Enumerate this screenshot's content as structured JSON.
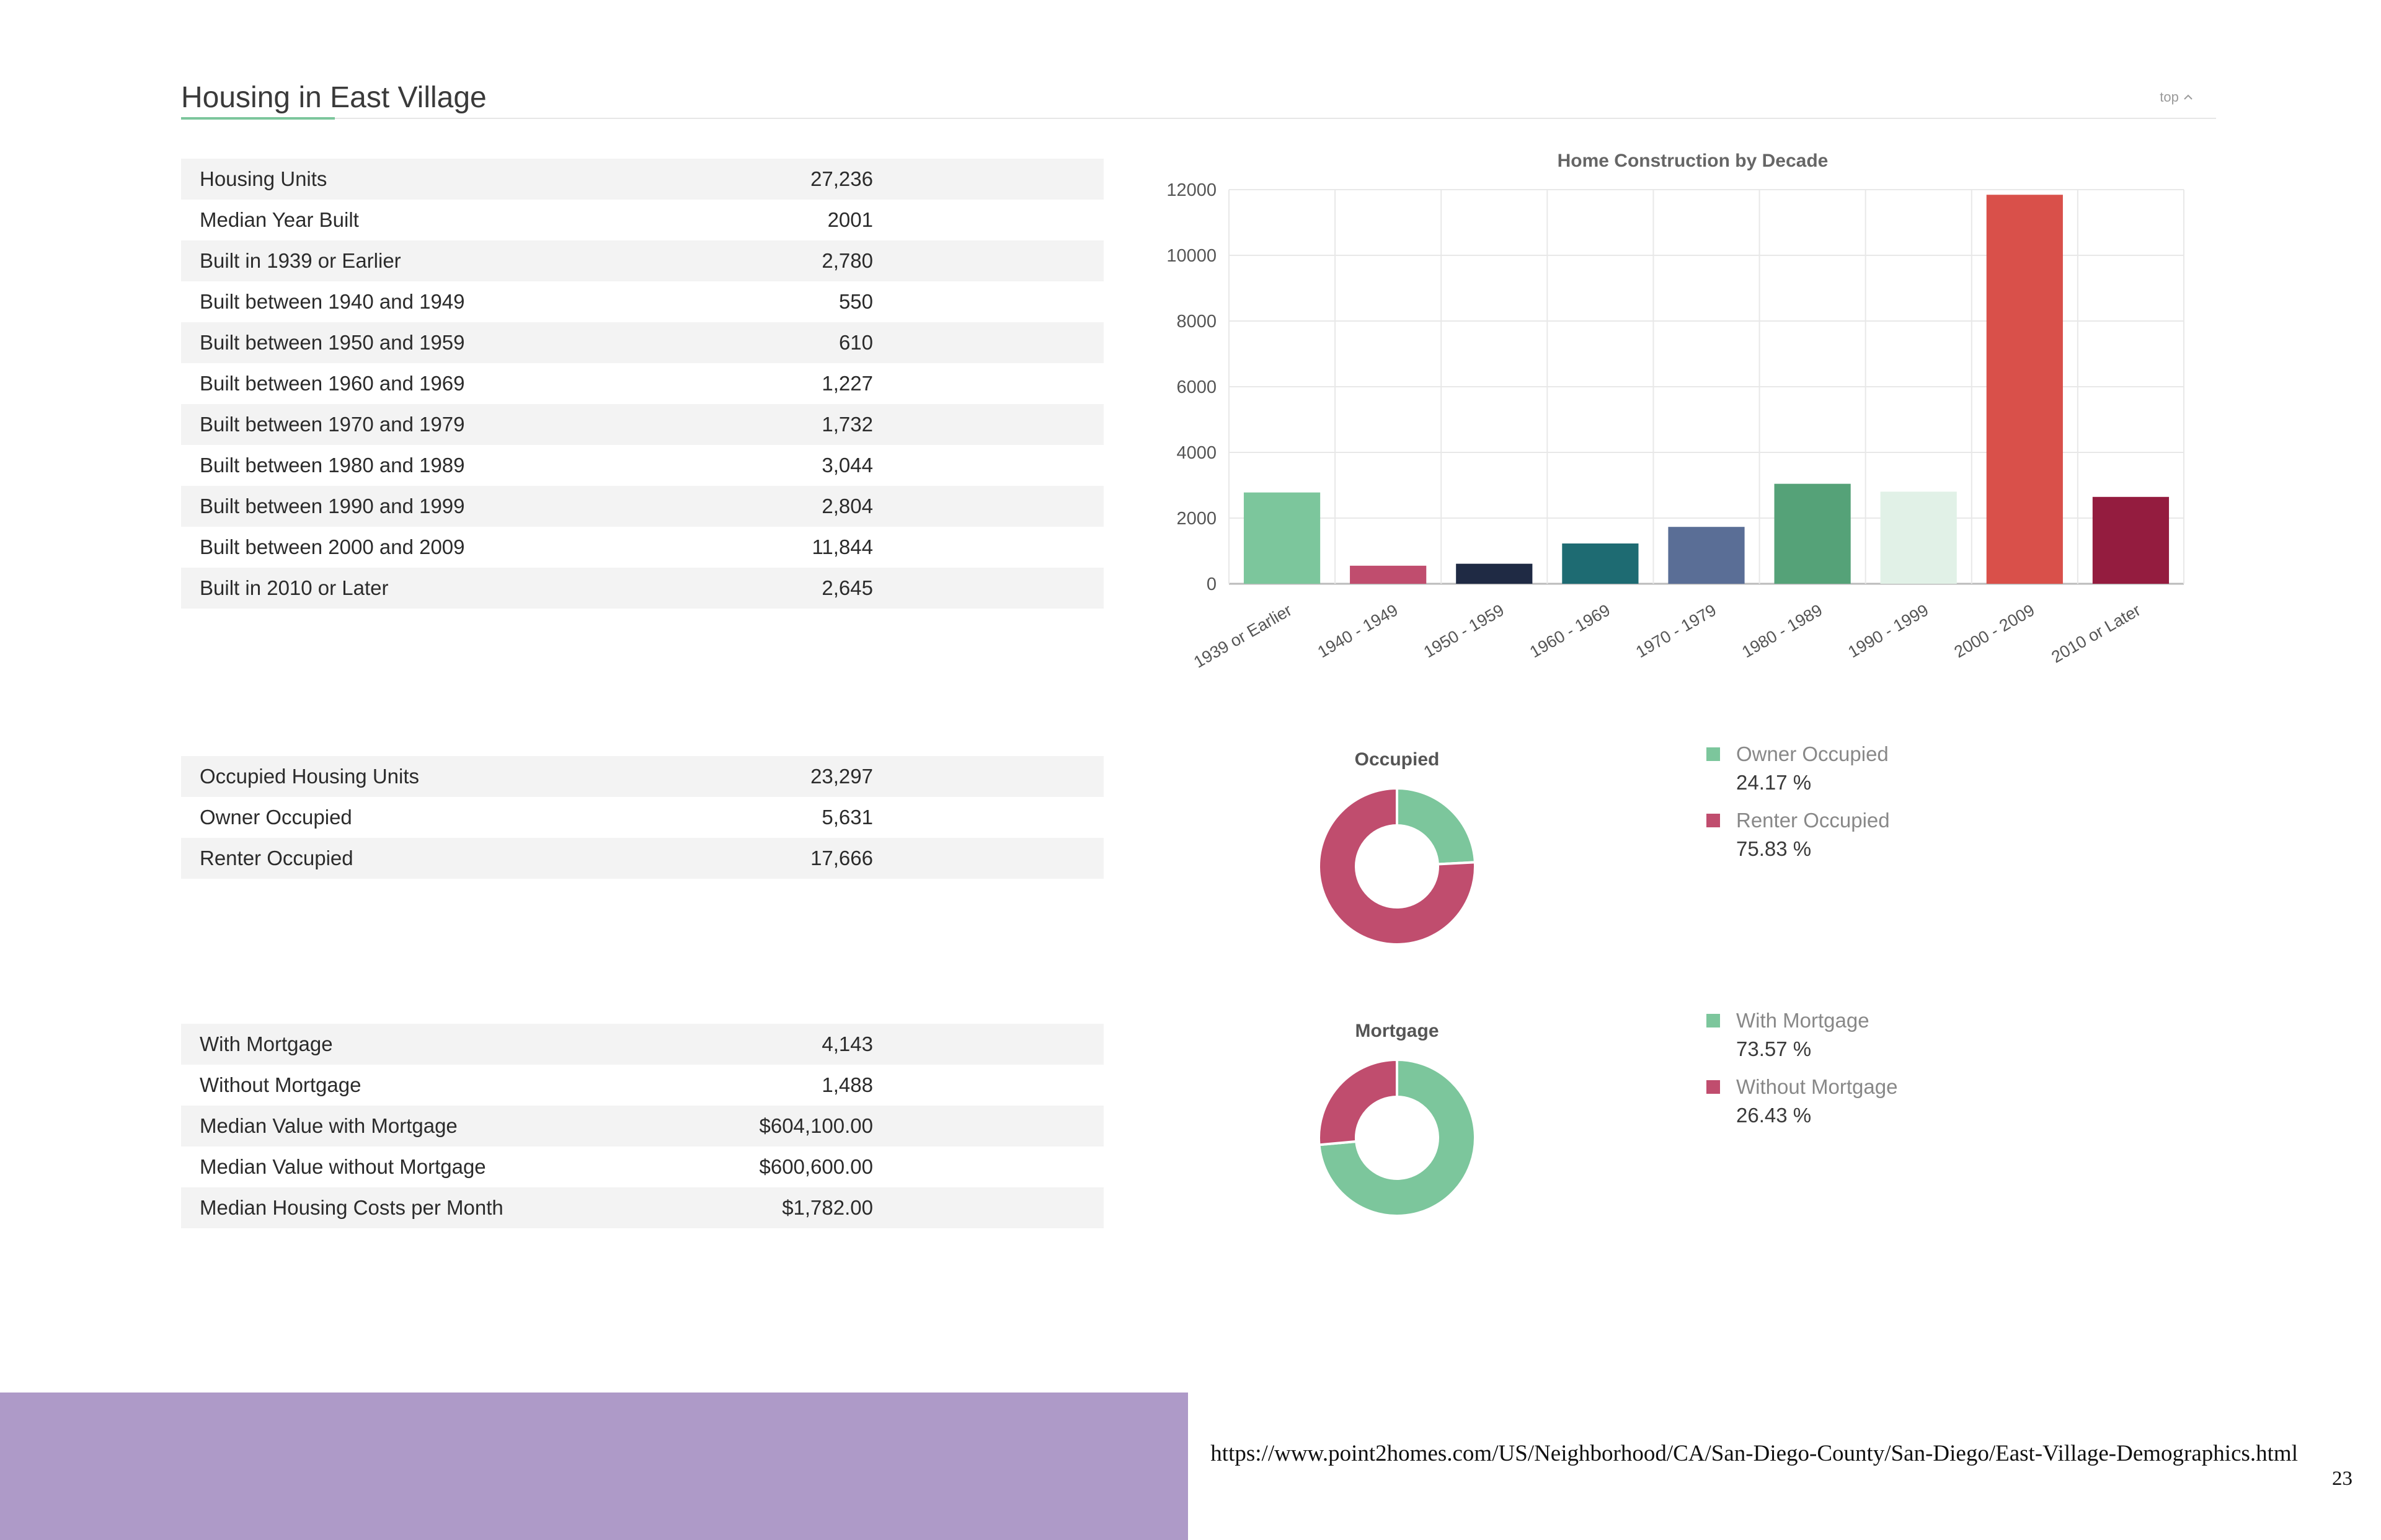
{
  "header": {
    "title": "Housing in East Village",
    "top_link": "top",
    "top_icon": "chevron-up-icon"
  },
  "tables": {
    "construction": [
      {
        "label": "Housing Units",
        "value": "27,236"
      },
      {
        "label": "Median Year Built",
        "value": "2001"
      },
      {
        "label": "Built in 1939 or Earlier",
        "value": "2,780"
      },
      {
        "label": "Built between 1940 and 1949",
        "value": "550"
      },
      {
        "label": "Built between 1950 and 1959",
        "value": "610"
      },
      {
        "label": "Built between 1960 and 1969",
        "value": "1,227"
      },
      {
        "label": "Built between 1970 and 1979",
        "value": "1,732"
      },
      {
        "label": "Built between 1980 and 1989",
        "value": "3,044"
      },
      {
        "label": "Built between 1990 and 1999",
        "value": "2,804"
      },
      {
        "label": "Built between 2000 and 2009",
        "value": "11,844"
      },
      {
        "label": "Built in 2010 or Later",
        "value": "2,645"
      }
    ],
    "occupancy": [
      {
        "label": "Occupied Housing Units",
        "value": "23,297"
      },
      {
        "label": "Owner Occupied",
        "value": "5,631"
      },
      {
        "label": "Renter Occupied",
        "value": "17,666"
      }
    ],
    "mortgage": [
      {
        "label": "With Mortgage",
        "value": "4,143"
      },
      {
        "label": "Without Mortgage",
        "value": "1,488"
      },
      {
        "label": "Median Value with Mortgage",
        "value": "$604,100.00"
      },
      {
        "label": "Median Value without Mortgage",
        "value": "$600,600.00"
      },
      {
        "label": "Median Housing Costs per Month",
        "value": "$1,782.00"
      }
    ]
  },
  "chart_data": [
    {
      "type": "bar",
      "title": "Home Construction by Decade",
      "categories": [
        "1939 or Earlier",
        "1940 - 1949",
        "1950 - 1959",
        "1960 - 1969",
        "1970 - 1979",
        "1980 - 1989",
        "1990 - 1999",
        "2000 - 2009",
        "2010 or Later"
      ],
      "values": [
        2780,
        550,
        610,
        1227,
        1732,
        3044,
        2804,
        11844,
        2645
      ],
      "colors": [
        "#7cc69c",
        "#c04d6e",
        "#1f2a44",
        "#1e6b72",
        "#5a6e96",
        "#55a278",
        "#e1f1e7",
        "#d9504a",
        "#941c3f"
      ],
      "ylim": [
        0,
        12000
      ],
      "yticks": [
        0,
        2000,
        4000,
        6000,
        8000,
        10000,
        12000
      ],
      "grid": true,
      "legend": "none"
    },
    {
      "type": "pie",
      "title": "Occupied",
      "labels": [
        "Owner Occupied",
        "Renter Occupied"
      ],
      "values": [
        24.17,
        75.83
      ],
      "display": [
        "24.17 %",
        "75.83 %"
      ],
      "colors": [
        "#7cc69c",
        "#c04d6e"
      ],
      "legend": "right"
    },
    {
      "type": "pie",
      "title": "Mortgage",
      "labels": [
        "With Mortgage",
        "Without Mortgage"
      ],
      "values": [
        73.57,
        26.43
      ],
      "display": [
        "73.57 %",
        "26.43 %"
      ],
      "colors": [
        "#7cc69c",
        "#c04d6e"
      ],
      "legend": "right"
    }
  ],
  "footer": {
    "url": "https://www.point2homes.com/US/Neighborhood/CA/San-Diego-County/San-Diego/East-Village-Demographics.html",
    "page_number": "23"
  }
}
